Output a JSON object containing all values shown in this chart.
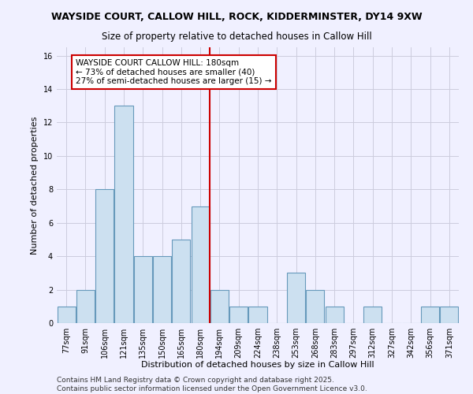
{
  "title": "WAYSIDE COURT, CALLOW HILL, ROCK, KIDDERMINSTER, DY14 9XW",
  "subtitle": "Size of property relative to detached houses in Callow Hill",
  "xlabel": "Distribution of detached houses by size in Callow Hill",
  "ylabel": "Number of detached properties",
  "categories": [
    "77sqm",
    "91sqm",
    "106sqm",
    "121sqm",
    "135sqm",
    "150sqm",
    "165sqm",
    "180sqm",
    "194sqm",
    "209sqm",
    "224sqm",
    "238sqm",
    "253sqm",
    "268sqm",
    "283sqm",
    "297sqm",
    "312sqm",
    "327sqm",
    "342sqm",
    "356sqm",
    "371sqm"
  ],
  "values": [
    1,
    2,
    8,
    13,
    4,
    4,
    5,
    7,
    2,
    1,
    1,
    0,
    3,
    2,
    1,
    0,
    1,
    0,
    0,
    1,
    1
  ],
  "bar_color": "#cce0f0",
  "bar_edge_color": "#6699bb",
  "vline_x_index": 7,
  "vline_color": "#cc0000",
  "annotation_title": "WAYSIDE COURT CALLOW HILL: 180sqm",
  "annotation_line1": "← 73% of detached houses are smaller (40)",
  "annotation_line2": "27% of semi-detached houses are larger (15) →",
  "annotation_box_color": "#ffffff",
  "annotation_box_edge_color": "#cc0000",
  "ylim": [
    0,
    16.5
  ],
  "yticks": [
    0,
    2,
    4,
    6,
    8,
    10,
    12,
    14,
    16
  ],
  "grid_color": "#ccccdd",
  "background_color": "#f0f0ff",
  "footer_line1": "Contains HM Land Registry data © Crown copyright and database right 2025.",
  "footer_line2": "Contains public sector information licensed under the Open Government Licence v3.0.",
  "title_fontsize": 9,
  "subtitle_fontsize": 8.5,
  "xlabel_fontsize": 8,
  "ylabel_fontsize": 8,
  "tick_fontsize": 7,
  "annotation_fontsize": 7.5,
  "footer_fontsize": 6.5
}
